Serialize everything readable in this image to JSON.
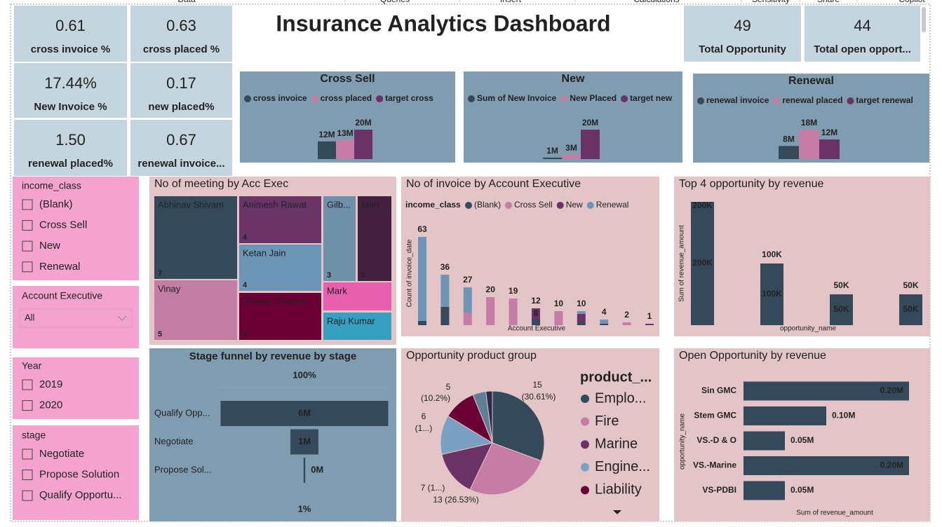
{
  "menu": [
    "Data",
    "Queries",
    "Insert",
    "Calculations",
    "Sensitivity",
    "Share",
    "Copilot"
  ],
  "title": "Insurance Analytics Dashboard",
  "cards": [
    {
      "value": "0.61",
      "label": "cross invoice %"
    },
    {
      "value": "0.63",
      "label": "cross placed %"
    },
    {
      "value": "17.44%",
      "label": "New Invoice %"
    },
    {
      "value": "0.17",
      "label": "new placed%"
    },
    {
      "value": "1.50",
      "label": "renewal placed%"
    },
    {
      "value": "0.67",
      "label": "renewal invoice..."
    },
    {
      "value": "49",
      "label": "Total Opportunity"
    },
    {
      "value": "44",
      "label": "Total open opport..."
    }
  ],
  "slicers": [
    {
      "title": "income_class",
      "items": [
        "(Blank)",
        "Cross Sell",
        "New",
        "Renewal"
      ]
    },
    {
      "title": "Account Executive",
      "dropdown": "All"
    },
    {
      "title": "Year",
      "items": [
        "2019",
        "2020"
      ]
    },
    {
      "title": "stage",
      "items": [
        "Negotiate",
        "Propose Solution",
        "Qualify Opportu..."
      ]
    }
  ],
  "chart_data": [
    {
      "type": "bar",
      "title": "Cross Sell",
      "categories": [
        null
      ],
      "series": [
        {
          "name": "cross invoice",
          "color": "#344a5a",
          "values": [
            12000000
          ],
          "value_labels": [
            "12M"
          ]
        },
        {
          "name": "cross placed",
          "color": "#c57da6",
          "values": [
            13000000
          ],
          "value_labels": [
            "13M"
          ]
        },
        {
          "name": "target cross",
          "color": "#6b3266",
          "values": [
            20000000
          ],
          "value_labels": [
            "20M"
          ]
        }
      ]
    },
    {
      "type": "bar",
      "title": "New",
      "categories": [
        null
      ],
      "series": [
        {
          "name": "Sum of New Invoice",
          "color": "#344a5a",
          "values": [
            1000000
          ],
          "value_labels": [
            "1M"
          ]
        },
        {
          "name": "New Placed",
          "color": "#c57da6",
          "values": [
            3000000
          ],
          "value_labels": [
            "3M"
          ]
        },
        {
          "name": "target new",
          "color": "#6b3266",
          "values": [
            20000000
          ],
          "value_labels": [
            "20M"
          ]
        }
      ]
    },
    {
      "type": "bar",
      "title": "Renewal",
      "categories": [
        null
      ],
      "series": [
        {
          "name": "renewal invoice",
          "color": "#344a5a",
          "values": [
            8000000
          ],
          "value_labels": [
            "8M"
          ]
        },
        {
          "name": "renewal  placed",
          "color": "#c57da6",
          "values": [
            18000000
          ],
          "value_labels": [
            "18M"
          ]
        },
        {
          "name": "target renewal",
          "color": "#6b3266",
          "values": [
            12000000
          ],
          "value_labels": [
            "12M"
          ]
        }
      ]
    },
    {
      "type": "treemap",
      "title": "No of meeting by Acc Exec",
      "categories": [
        "Abhinav Shivam",
        "Animesh Rawat",
        "Gilb...",
        "Man...",
        "Ketan Jain",
        "Vinay",
        "Shivani Sharma",
        "Mark",
        "Raju Kumar"
      ],
      "values": [
        7,
        4,
        3,
        3,
        4,
        5,
        4,
        2,
        2
      ],
      "colors": [
        "#344a5a",
        "#6a3466",
        "#6e90a8",
        "#442040",
        "#6d95b5",
        "#c37ca3",
        "#6b0034",
        "#e660ad",
        "#37a0c0"
      ]
    },
    {
      "type": "stacked_bar",
      "title": "No of invoice by Account Executive",
      "legend_title": "income_class",
      "x_label": "Account Executive",
      "y_label": "Count of invoice_date",
      "categories": [
        null,
        null,
        null,
        null,
        null,
        null,
        null,
        null,
        null,
        null,
        null
      ],
      "series": [
        {
          "name": "(Blank)",
          "color": "#344a5a",
          "values": [
            3,
            13,
            0,
            0,
            0,
            4,
            0,
            2,
            1,
            0,
            0
          ]
        },
        {
          "name": "Cross Sell",
          "color": "#c57da6",
          "values": [
            0,
            0,
            9,
            20,
            19,
            0,
            10,
            0,
            0,
            2,
            0
          ]
        },
        {
          "name": "New",
          "color": "#6b3266",
          "values": [
            0,
            0,
            0,
            0,
            0,
            8,
            0,
            6,
            0,
            0,
            1
          ],
          "value_labels": [
            null,
            null,
            null,
            null,
            null,
            "8",
            null,
            null,
            null,
            null,
            null
          ]
        },
        {
          "name": "Renewal",
          "color": "#6d95b5",
          "values": [
            60,
            23,
            18,
            0,
            0,
            0,
            0,
            2,
            3,
            0,
            0
          ]
        }
      ],
      "total_labels": [
        63,
        36,
        27,
        20,
        19,
        12,
        10,
        10,
        4,
        2,
        1
      ]
    },
    {
      "type": "bar",
      "title": "Top 4 opportunity by revenue",
      "categories": [
        null,
        null,
        null,
        null
      ],
      "values": [
        200000,
        100000,
        50000,
        50000
      ],
      "value_labels": [
        "200K",
        "100K",
        "50K",
        "50K"
      ],
      "color": "#344a5a",
      "x_label": "opportunity_name",
      "y_label": "Sum of revenue_amount"
    },
    {
      "type": "funnel",
      "title": "Stage funnel by revenue by stage",
      "categories": [
        "Qualify Opp...",
        "Negotiate",
        "Propose Sol..."
      ],
      "values": [
        6000000,
        1000000,
        60000
      ],
      "value_labels": [
        "6M",
        "1M",
        "0M"
      ],
      "color": "#344a5a",
      "percent_labels": [
        {
          "value": 100,
          "label": "100%"
        },
        {
          "value": 1,
          "label": "1%"
        }
      ]
    },
    {
      "type": "pie",
      "title": "Opportunity product group",
      "legend_title": "product_...",
      "categories": [
        "Emplo...",
        "Fire",
        "Marine",
        "Engine...",
        "Liability",
        null,
        null
      ],
      "values": [
        15,
        13,
        7,
        6,
        5,
        2,
        1
      ],
      "value_labels": [
        [
          "15",
          "(30.61%)"
        ],
        [
          "13 (26.53%)"
        ],
        [
          "7 (1...)"
        ],
        [
          "6",
          "(1...)"
        ],
        [
          "5",
          "(10.2%)"
        ],
        null,
        null
      ],
      "colors": [
        "#344a5a",
        "#c57da6",
        "#6b3266",
        "#7aa0c2",
        "#6b0034",
        "#5f7f99",
        "#2e2a4a"
      ]
    },
    {
      "type": "horizontal_bar",
      "title": "Open Opportunity by revenue",
      "categories": [
        "Sin GMC",
        "Stem GMC",
        "VS.-D & O",
        "VS.-Marine",
        "VS-PDBI"
      ],
      "values": [
        200000,
        100000,
        50000,
        200000,
        50000
      ],
      "value_labels": [
        "0.20M",
        "0.10M",
        "0.05M",
        "0.20M",
        "0.05M"
      ],
      "color": "#344a5a",
      "x_label": "Sum of revenue_amount",
      "y_label": "opportunity_name"
    }
  ]
}
